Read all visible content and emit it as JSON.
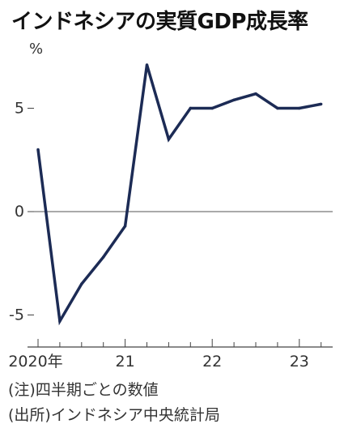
{
  "title": "インドネシアの実質GDP成長率",
  "chart_data": {
    "type": "line",
    "ylabel": "%",
    "ylim": [
      -5.5,
      7.5
    ],
    "yticks": [
      -5,
      0,
      5
    ],
    "ytick_labels": [
      "-5",
      "0",
      "5"
    ],
    "xticks": [
      {
        "label": "2020年",
        "index": 0
      },
      {
        "label": "21",
        "index": 4
      },
      {
        "label": "22",
        "index": 8
      },
      {
        "label": "23",
        "index": 12
      }
    ],
    "x": [
      "2020Q1",
      "2020Q2",
      "2020Q3",
      "2020Q4",
      "2021Q1",
      "2021Q2",
      "2021Q3",
      "2021Q4",
      "2022Q1",
      "2022Q2",
      "2022Q3",
      "2022Q4",
      "2023Q1",
      "2023Q2"
    ],
    "series": [
      {
        "values": [
          3.0,
          -5.3,
          -3.5,
          -2.2,
          -0.7,
          7.1,
          3.5,
          5.0,
          5.0,
          5.4,
          5.7,
          5.0,
          5.0,
          5.2
        ]
      }
    ],
    "line_color": "#1c2b55",
    "grid": false
  },
  "notes": {
    "note1": "(注)四半期ごとの数値",
    "source": "(出所)インドネシア中央統計局"
  }
}
